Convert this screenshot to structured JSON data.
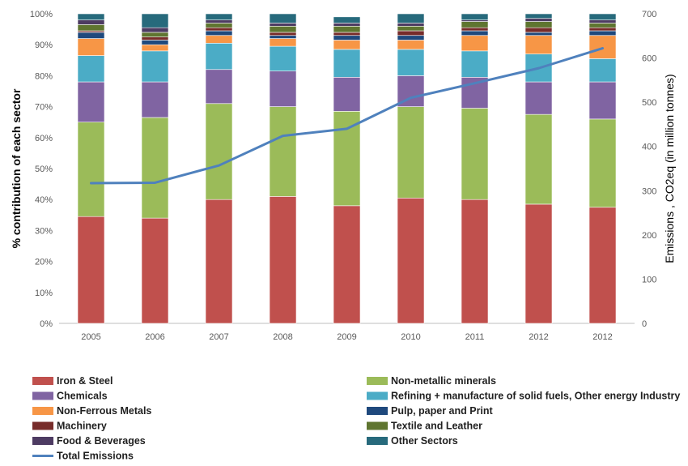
{
  "chart_data": {
    "type": "stacked-bar-with-line",
    "title": "",
    "categories": [
      "2005",
      "2006",
      "2007",
      "2008",
      "2009",
      "2010",
      "2011",
      "2012",
      "2012"
    ],
    "ylabel_left": "% contribution of each sector",
    "ylabel_right": "Emissions , CO2eq (in million tonnes)",
    "ylim_left": [
      0,
      100
    ],
    "ylim_right": [
      0,
      700
    ],
    "yticks_left": [
      "0%",
      "10%",
      "20%",
      "30%",
      "40%",
      "50%",
      "60%",
      "70%",
      "80%",
      "90%",
      "100%"
    ],
    "yticks_right": [
      "0",
      "100",
      "200",
      "300",
      "400",
      "500",
      "600",
      "700"
    ],
    "grid": false,
    "legend_position": "bottom",
    "series": [
      {
        "name": "Iron & Steel",
        "color": "#C0504D",
        "values": [
          34.5,
          34.0,
          40.0,
          41.0,
          38.0,
          40.5,
          40.0,
          38.5,
          37.5
        ]
      },
      {
        "name": "Non-metallic minerals",
        "color": "#9BBB59",
        "values": [
          30.5,
          32.5,
          31.0,
          29.0,
          30.5,
          29.5,
          29.5,
          29.0,
          28.5
        ]
      },
      {
        "name": "Chemicals",
        "color": "#8064A2",
        "values": [
          13.0,
          11.5,
          11.0,
          11.5,
          11.0,
          10.0,
          10.0,
          10.5,
          12.0
        ]
      },
      {
        "name": "Refining + manufacture of solid fuels, Other energy Industry",
        "color": "#4BACC6",
        "values": [
          8.5,
          10.0,
          8.5,
          8.0,
          9.0,
          8.5,
          8.5,
          9.0,
          7.5
        ]
      },
      {
        "name": "Non-Ferrous Metals",
        "color": "#F79646",
        "values": [
          5.5,
          2.0,
          2.5,
          2.5,
          3.0,
          3.0,
          5.0,
          6.0,
          7.5
        ]
      },
      {
        "name": "Pulp, paper and Print",
        "color": "#1F497D",
        "values": [
          2.0,
          1.5,
          1.5,
          1.0,
          1.5,
          1.5,
          1.5,
          1.0,
          1.5
        ]
      },
      {
        "name": "Machinery",
        "color": "#772C2A",
        "values": [
          0.5,
          1.0,
          1.0,
          1.0,
          1.0,
          1.5,
          1.0,
          1.5,
          1.0
        ]
      },
      {
        "name": "Textile and Leather",
        "color": "#5F7530",
        "values": [
          2.0,
          1.5,
          1.5,
          2.0,
          2.0,
          1.5,
          2.0,
          2.0,
          1.5
        ]
      },
      {
        "name": "Food & Beverages",
        "color": "#4D3B62",
        "values": [
          1.5,
          1.5,
          1.0,
          1.0,
          1.0,
          1.0,
          0.5,
          1.0,
          1.0
        ]
      },
      {
        "name": "Other Sectors",
        "color": "#276A7C",
        "values": [
          2.0,
          4.5,
          2.0,
          3.0,
          2.0,
          3.0,
          2.0,
          1.5,
          2.0
        ]
      }
    ],
    "line_series": {
      "name": "Total Emissions",
      "color": "#4F81BD",
      "axis": "right",
      "values": [
        317,
        318,
        357,
        424,
        440,
        510,
        543,
        577,
        622
      ]
    }
  }
}
